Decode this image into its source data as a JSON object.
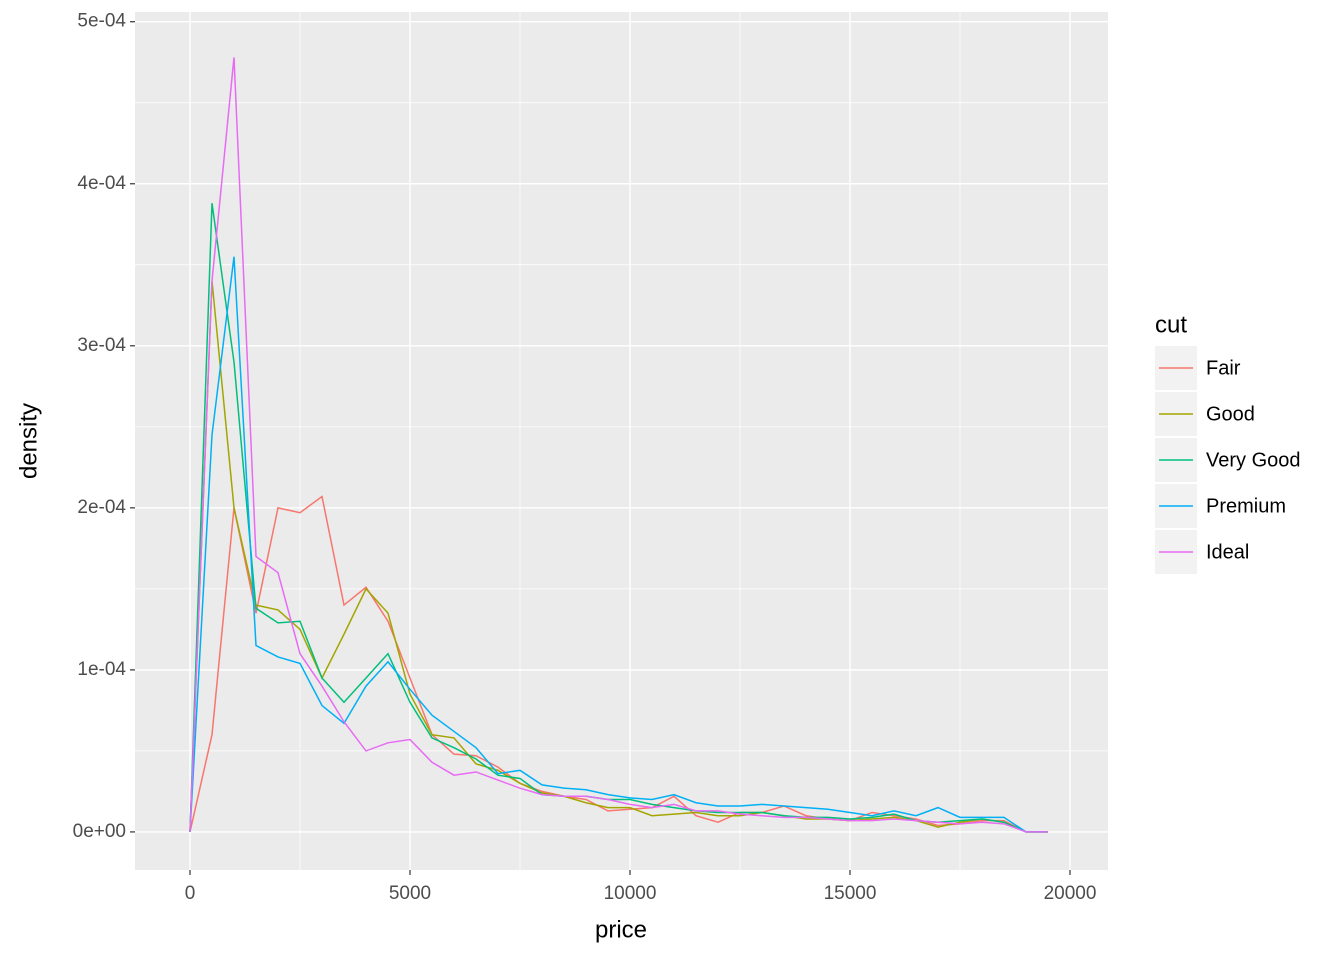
{
  "chart_data": {
    "type": "line",
    "x_label": "price",
    "y_label": "density",
    "legend_title": "cut",
    "legend_position": "right",
    "grid": true,
    "xlim": [
      -1250,
      20864
    ],
    "ylim": [
      -2.35e-05,
      0.000506
    ],
    "xticks": [
      0,
      5000,
      10000,
      15000,
      20000
    ],
    "yticks": [
      {
        "value": 0,
        "label": "0e+00"
      },
      {
        "value": 0.0001,
        "label": "1e-04"
      },
      {
        "value": 0.0002,
        "label": "2e-04"
      },
      {
        "value": 0.0003,
        "label": "3e-04"
      },
      {
        "value": 0.0004,
        "label": "4e-04"
      },
      {
        "value": 0.0005,
        "label": "5e-04"
      }
    ],
    "x": [
      0,
      500,
      1000,
      1500,
      2000,
      2500,
      3000,
      3500,
      4000,
      4500,
      5000,
      5500,
      6000,
      6500,
      7000,
      7500,
      8000,
      8500,
      9000,
      9500,
      10000,
      10500,
      11000,
      11500,
      12000,
      12500,
      13000,
      13500,
      14000,
      14500,
      15000,
      15500,
      16000,
      16500,
      17000,
      17500,
      18000,
      18500,
      19000,
      19500
    ],
    "series": [
      {
        "name": "Fair",
        "color": "#F8766D",
        "values": [
          0,
          6e-05,
          0.0002,
          0.000135,
          0.0002,
          0.000197,
          0.000207,
          0.00014,
          0.000151,
          0.00013,
          9.5e-05,
          6e-05,
          4.8e-05,
          4.7e-05,
          4e-05,
          3e-05,
          2.5e-05,
          2.2e-05,
          2e-05,
          1.3e-05,
          1.4e-05,
          1.5e-05,
          2.2e-05,
          1e-05,
          6e-06,
          1.2e-05,
          1.2e-05,
          1.6e-05,
          1e-05,
          8e-06,
          7e-06,
          1.2e-05,
          1e-05,
          8e-06,
          4e-06,
          5e-06,
          7e-06,
          7e-06,
          0,
          0
        ]
      },
      {
        "name": "Good",
        "color": "#A3A500",
        "values": [
          0,
          0.00034,
          0.0002,
          0.00014,
          0.000137,
          0.000125,
          9.5e-05,
          0.000122,
          0.00015,
          0.000135,
          8.5e-05,
          6e-05,
          5.8e-05,
          4.2e-05,
          3.8e-05,
          3e-05,
          2.4e-05,
          2.2e-05,
          1.8e-05,
          1.5e-05,
          1.5e-05,
          1e-05,
          1.1e-05,
          1.2e-05,
          1e-05,
          1e-05,
          1.2e-05,
          1e-05,
          8e-06,
          8e-06,
          7e-06,
          8e-06,
          9e-06,
          7e-06,
          3e-06,
          6e-06,
          8e-06,
          6e-06,
          0,
          0
        ]
      },
      {
        "name": "Very Good",
        "color": "#00BF7D",
        "values": [
          0,
          0.000388,
          0.00029,
          0.000138,
          0.000129,
          0.00013,
          9.5e-05,
          8e-05,
          9.5e-05,
          0.00011,
          8e-05,
          5.8e-05,
          5.2e-05,
          4.5e-05,
          3.5e-05,
          3.3e-05,
          2.3e-05,
          2.2e-05,
          2.2e-05,
          2e-05,
          2e-05,
          1.7e-05,
          1.5e-05,
          1.3e-05,
          1.2e-05,
          1.2e-05,
          1.2e-05,
          1e-05,
          9e-06,
          9e-06,
          8e-06,
          9e-06,
          1.1e-05,
          7e-06,
          6e-06,
          7e-06,
          8e-06,
          6e-06,
          0,
          0
        ]
      },
      {
        "name": "Premium",
        "color": "#00B0F6",
        "values": [
          0,
          0.000245,
          0.000355,
          0.000115,
          0.000108,
          0.000104,
          7.8e-05,
          6.7e-05,
          9e-05,
          0.000105,
          8.8e-05,
          7.2e-05,
          6.2e-05,
          5.2e-05,
          3.6e-05,
          3.8e-05,
          2.9e-05,
          2.7e-05,
          2.6e-05,
          2.3e-05,
          2.1e-05,
          2e-05,
          2.3e-05,
          1.8e-05,
          1.6e-05,
          1.6e-05,
          1.7e-05,
          1.6e-05,
          1.5e-05,
          1.4e-05,
          1.2e-05,
          1e-05,
          1.3e-05,
          1e-05,
          1.5e-05,
          9e-06,
          9e-06,
          9e-06,
          0,
          0
        ]
      },
      {
        "name": "Ideal",
        "color": "#E76BF3",
        "values": [
          0,
          0.00034,
          0.000478,
          0.00017,
          0.00016,
          0.00011,
          9e-05,
          6.8e-05,
          5e-05,
          5.5e-05,
          5.7e-05,
          4.3e-05,
          3.5e-05,
          3.7e-05,
          3.2e-05,
          2.7e-05,
          2.3e-05,
          2.2e-05,
          2.2e-05,
          2e-05,
          1.7e-05,
          1.5e-05,
          1.7e-05,
          1.3e-05,
          1.3e-05,
          1.1e-05,
          1e-05,
          9e-06,
          9e-06,
          8e-06,
          7e-06,
          7e-06,
          8e-06,
          7e-06,
          6e-06,
          5e-06,
          6e-06,
          5e-06,
          0,
          0
        ]
      }
    ]
  }
}
